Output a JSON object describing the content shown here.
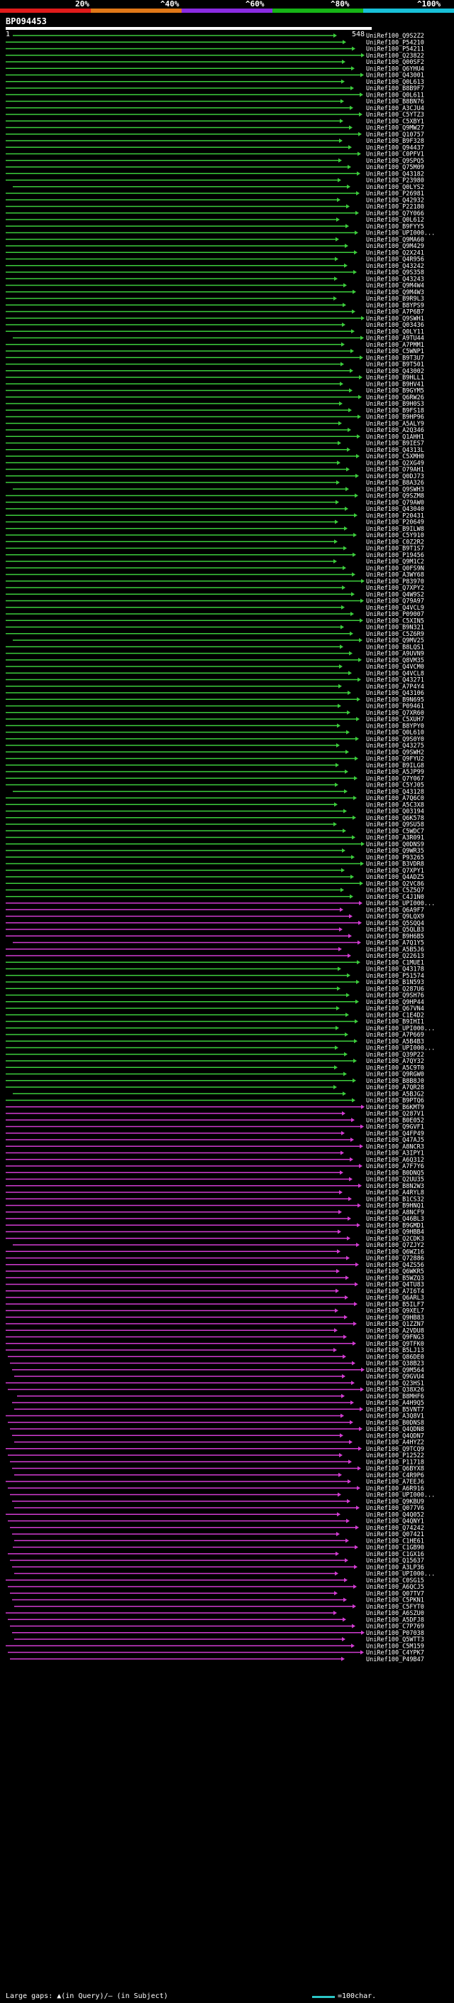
{
  "header": {
    "percent_labels": [
      "20%",
      "^40%",
      "^60%",
      "^80%",
      "^100%"
    ],
    "colors": [
      "#e01b1b",
      "#e07818",
      "#8a2be2",
      "#16b416",
      "#18c0d8"
    ],
    "query_id": "BP094453",
    "query_start": "1",
    "query_end": "548"
  },
  "footer": {
    "large_gaps": "Large gaps: ▲(in Query)/— (in Subject)",
    "scale_label": "=100char."
  },
  "rows": [
    {
      "id": "UniRef100_Q9S2Z2"
    },
    {
      "id": "UniRef100_P54210"
    },
    {
      "id": "UniRef100_P54211"
    },
    {
      "id": "UniRef100_Q23822"
    },
    {
      "id": "UniRef100_Q00SF2"
    },
    {
      "id": "UniRef100_Q6YHU4"
    },
    {
      "id": "UniRef100_Q43001"
    },
    {
      "id": "UniRef100_Q0L613"
    },
    {
      "id": "UniRef100_B8B9F7"
    },
    {
      "id": "UniRef100_Q0L611"
    },
    {
      "id": "UniRef100_B8BN76"
    },
    {
      "id": "UniRef100_A3CJU4"
    },
    {
      "id": "UniRef100_C5YTZ3"
    },
    {
      "id": "UniRef100_C5XBY1"
    },
    {
      "id": "UniRef100_Q9MW27"
    },
    {
      "id": "UniRef100_Q10757"
    },
    {
      "id": "UniRef100_B9F328"
    },
    {
      "id": "UniRef100_Q94437"
    },
    {
      "id": "UniRef100_C0PFV1"
    },
    {
      "id": "UniRef100_Q9SPQ5"
    },
    {
      "id": "UniRef100_Q75M09"
    },
    {
      "id": "UniRef100_Q43182"
    },
    {
      "id": "UniRef100_P23980"
    },
    {
      "id": "UniRef100_Q0LYS2"
    },
    {
      "id": "UniRef100_P26981"
    },
    {
      "id": "UniRef100_Q42932"
    },
    {
      "id": "UniRef100_P22180"
    },
    {
      "id": "UniRef100_Q7Y066"
    },
    {
      "id": "UniRef100_Q0L612"
    },
    {
      "id": "UniRef100_B9FYY5"
    },
    {
      "id": "UniRef100_UPI000..."
    },
    {
      "id": "UniRef100_Q9MA60"
    },
    {
      "id": "UniRef100_Q9M429"
    },
    {
      "id": "UniRef100_Q2X241"
    },
    {
      "id": "UniRef100_Q4R956"
    },
    {
      "id": "UniRef100_Q43242"
    },
    {
      "id": "UniRef100_Q9S358"
    },
    {
      "id": "UniRef100_Q43243"
    },
    {
      "id": "UniRef100_Q9M4W4"
    },
    {
      "id": "UniRef100_Q9M4W3"
    },
    {
      "id": "UniRef100_B9R9L3"
    },
    {
      "id": "UniRef100_B8YPS9"
    },
    {
      "id": "UniRef100_A7P6B7"
    },
    {
      "id": "UniRef100_Q9SWH1"
    },
    {
      "id": "UniRef100_Q03436"
    },
    {
      "id": "UniRef100_Q0LY11"
    },
    {
      "id": "UniRef100_A9TU44"
    },
    {
      "id": "UniRef100_A7PMM1"
    },
    {
      "id": "UniRef100_C5WNP1"
    },
    {
      "id": "UniRef100_B9T3U7"
    },
    {
      "id": "UniRef100_B9T501"
    },
    {
      "id": "UniRef100_Q43002"
    },
    {
      "id": "UniRef100_B9HLL1"
    },
    {
      "id": "UniRef100_B9HV41"
    },
    {
      "id": "UniRef100_B9GYM5"
    },
    {
      "id": "UniRef100_Q6RW26"
    },
    {
      "id": "UniRef100_B9H0S3"
    },
    {
      "id": "UniRef100_B9FS18"
    },
    {
      "id": "UniRef100_B9HP96"
    },
    {
      "id": "UniRef100_A5ALY9"
    },
    {
      "id": "UniRef100_A2Q346"
    },
    {
      "id": "UniRef100_Q1AHH1"
    },
    {
      "id": "UniRef100_B9IES7"
    },
    {
      "id": "UniRef100_Q4313L"
    },
    {
      "id": "UniRef100_C5XMH0"
    },
    {
      "id": "UniRef100_Q2XG49"
    },
    {
      "id": "UniRef100_O79AH1"
    },
    {
      "id": "UniRef100_Q0DJ73"
    },
    {
      "id": "UniRef100_B8A326"
    },
    {
      "id": "UniRef100_Q9SWH3"
    },
    {
      "id": "UniRef100_Q9SZM8"
    },
    {
      "id": "UniRef100_Q79AW0"
    },
    {
      "id": "UniRef100_Q43040"
    },
    {
      "id": "UniRef100_P20431"
    },
    {
      "id": "UniRef100_P20649"
    },
    {
      "id": "UniRef100_B9ILW8"
    },
    {
      "id": "UniRef100_C5Y910"
    },
    {
      "id": "UniRef100_C0Z2R2"
    },
    {
      "id": "UniRef100_B9T1S7"
    },
    {
      "id": "UniRef100_P19456"
    },
    {
      "id": "UniRef100_Q9M1C2"
    },
    {
      "id": "UniRef100_Q0FS9N"
    },
    {
      "id": "UniRef100_A3WY68"
    },
    {
      "id": "UniRef100_P83970"
    },
    {
      "id": "UniRef100_Q7XPY2"
    },
    {
      "id": "UniRef100_Q4W9S2"
    },
    {
      "id": "UniRef100_Q79A97"
    },
    {
      "id": "UniRef100_Q4VCL9"
    },
    {
      "id": "UniRef100_P09007"
    },
    {
      "id": "UniRef100_C5XIN5"
    },
    {
      "id": "UniRef100_B9N321"
    },
    {
      "id": "UniRef100_C5Z6R9"
    },
    {
      "id": "UniRef100_Q9MV25"
    },
    {
      "id": "UniRef100_B8LQS1"
    },
    {
      "id": "UniRef100_A9UVN9"
    },
    {
      "id": "UniRef100_Q8VM35"
    },
    {
      "id": "UniRef100_Q4VCM0"
    },
    {
      "id": "UniRef100_Q4VCL8"
    },
    {
      "id": "UniRef100_Q43271"
    },
    {
      "id": "UniRef100_A7P4Y4"
    },
    {
      "id": "UniRef100_Q43106"
    },
    {
      "id": "UniRef100_B9N695"
    },
    {
      "id": "UniRef100_P09461"
    },
    {
      "id": "UniRef100_Q7XR60"
    },
    {
      "id": "UniRef100_C5XUH7"
    },
    {
      "id": "UniRef100_B8YPY0"
    },
    {
      "id": "UniRef100_Q0L610"
    },
    {
      "id": "UniRef100_Q9S0Y0"
    },
    {
      "id": "UniRef100_Q43275"
    },
    {
      "id": "UniRef100_Q9SWH2"
    },
    {
      "id": "UniRef100_Q9FYU2"
    },
    {
      "id": "UniRef100_B9ILG8"
    },
    {
      "id": "UniRef100_A5JP99"
    },
    {
      "id": "UniRef100_Q7Y067"
    },
    {
      "id": "UniRef100_C5YJ05"
    },
    {
      "id": "UniRef100_Q43128"
    },
    {
      "id": "UniRef100_A7Q6C0"
    },
    {
      "id": "UniRef100_A5C3X8"
    },
    {
      "id": "UniRef100_Q03194"
    },
    {
      "id": "UniRef100_Q6K578"
    },
    {
      "id": "UniRef100_Q9SU58"
    },
    {
      "id": "UniRef100_C5WDC7"
    },
    {
      "id": "UniRef100_A3R091"
    },
    {
      "id": "UniRef100_Q0DNS9"
    },
    {
      "id": "UniRef100_Q9WR35"
    },
    {
      "id": "UniRef100_P93265"
    },
    {
      "id": "UniRef100_B3VDR8"
    },
    {
      "id": "UniRef100_Q7XPY1"
    },
    {
      "id": "UniRef100_Q4ADZ5"
    },
    {
      "id": "UniRef100_Q2VC86"
    },
    {
      "id": "UniRef100_C5Z5Q7"
    },
    {
      "id": "UniRef100_C4J1N0"
    },
    {
      "id": "UniRef100_UPI000..."
    },
    {
      "id": "UniRef100_Q6A9F7"
    },
    {
      "id": "UniRef100_Q9LQX9"
    },
    {
      "id": "UniRef100_Q5SQQ4"
    },
    {
      "id": "UniRef100_Q5QLB3"
    },
    {
      "id": "UniRef100_B9H6B5"
    },
    {
      "id": "UniRef100_A7Q1Y5"
    },
    {
      "id": "UniRef100_A5B5J6"
    },
    {
      "id": "UniRef100_Q22613"
    },
    {
      "id": "UniRef100_C1MUE1"
    },
    {
      "id": "UniRef100_Q43178"
    },
    {
      "id": "UniRef100_P51574"
    },
    {
      "id": "UniRef100_B1N593"
    },
    {
      "id": "UniRef100_Q287U6"
    },
    {
      "id": "UniRef100_Q9SH76"
    },
    {
      "id": "UniRef100_Q9HP44"
    },
    {
      "id": "UniRef100_Q67VN4"
    },
    {
      "id": "UniRef100_C1E4D2"
    },
    {
      "id": "UniRef100_B9IHI1"
    },
    {
      "id": "UniRef100_UPI000..."
    },
    {
      "id": "UniRef100_A7P669"
    },
    {
      "id": "UniRef100_A5B4B3"
    },
    {
      "id": "UniRef100_UPI000..."
    },
    {
      "id": "UniRef100_Q39P22"
    },
    {
      "id": "UniRef100_A7QY32"
    },
    {
      "id": "UniRef100_A5C9T0"
    },
    {
      "id": "UniRef100_Q9RGW0"
    },
    {
      "id": "UniRef100_B8B8J0"
    },
    {
      "id": "UniRef100_A7QR28"
    },
    {
      "id": "UniRef100_A5BJG2"
    },
    {
      "id": "UniRef100_B9PTQ6"
    },
    {
      "id": "UniRef100_B6KMT9"
    },
    {
      "id": "UniRef100_Q287V1"
    },
    {
      "id": "UniRef100_B0E052"
    },
    {
      "id": "UniRef100_Q9GVF1"
    },
    {
      "id": "UniRef100_Q4FP49"
    },
    {
      "id": "UniRef100_Q47AJ5"
    },
    {
      "id": "UniRef100_A8NCR3"
    },
    {
      "id": "UniRef100_A3IPY1"
    },
    {
      "id": "UniRef100_A6Q312"
    },
    {
      "id": "UniRef100_A7F7Y6"
    },
    {
      "id": "UniRef100_B0DNQ5"
    },
    {
      "id": "UniRef100_Q2UU35"
    },
    {
      "id": "UniRef100_B8N2W3"
    },
    {
      "id": "UniRef100_A4RYL8"
    },
    {
      "id": "UniRef100_B1CS32"
    },
    {
      "id": "UniRef100_B9HNQ1"
    },
    {
      "id": "UniRef100_A8NCF9"
    },
    {
      "id": "UniRef100_Q46BL3"
    },
    {
      "id": "UniRef100_B9GMD1"
    },
    {
      "id": "UniRef100_Q9HBB4"
    },
    {
      "id": "UniRef100_Q2CDK3"
    },
    {
      "id": "UniRef100_Q7ZJY2"
    },
    {
      "id": "UniRef100_Q6WZ16"
    },
    {
      "id": "UniRef100_Q72886"
    },
    {
      "id": "UniRef100_Q4ZS56"
    },
    {
      "id": "UniRef100_Q6WKR5"
    },
    {
      "id": "UniRef100_B5WZQ3"
    },
    {
      "id": "UniRef100_Q4TU83"
    },
    {
      "id": "UniRef100_A7I6T4"
    },
    {
      "id": "UniRef100_Q6ARL3"
    },
    {
      "id": "UniRef100_B5ILF7"
    },
    {
      "id": "UniRef100_Q9XEL7"
    },
    {
      "id": "UniRef100_Q9HB83"
    },
    {
      "id": "UniRef100_Q1ZZN7"
    },
    {
      "id": "UniRef100_A2VDU8"
    },
    {
      "id": "UniRef100_Q9FNG3"
    },
    {
      "id": "UniRef100_Q9TFK0"
    },
    {
      "id": "UniRef100_B5LJ13"
    },
    {
      "id": "UniRef100_Q86DE0"
    },
    {
      "id": "UniRef100_Q38B23"
    },
    {
      "id": "UniRef100_Q9M564"
    },
    {
      "id": "UniRef100_Q9GVU4"
    },
    {
      "id": "UniRef100_Q23HS1"
    },
    {
      "id": "UniRef100_Q38X26"
    },
    {
      "id": "UniRef100_B8MHF6"
    },
    {
      "id": "UniRef100_A4H9Q5"
    },
    {
      "id": "UniRef100_B5VNT7"
    },
    {
      "id": "UniRef100_A3Q8V1"
    },
    {
      "id": "UniRef100_B0DNS8"
    },
    {
      "id": "UniRef100_Q4QDN8"
    },
    {
      "id": "UniRef100_Q4QDN7"
    },
    {
      "id": "UniRef100_A4HYZ2"
    },
    {
      "id": "UniRef100_Q9TCQ9"
    },
    {
      "id": "UniRef100_P12522"
    },
    {
      "id": "UniRef100_P11718"
    },
    {
      "id": "UniRef100_Q6BYX8"
    },
    {
      "id": "UniRef100_C4R9P6"
    },
    {
      "id": "UniRef100_A7EEJ6"
    },
    {
      "id": "UniRef100_A6R916"
    },
    {
      "id": "UniRef100_UPI000..."
    },
    {
      "id": "UniRef100_Q9KBU9"
    },
    {
      "id": "UniRef100_Q077V6"
    },
    {
      "id": "UniRef100_Q4Q052"
    },
    {
      "id": "UniRef100_Q4QNY1"
    },
    {
      "id": "UniRef100_Q74242"
    },
    {
      "id": "UniRef100_Q07421"
    },
    {
      "id": "UniRef100_C1HE61"
    },
    {
      "id": "UniRef100_C1GB90"
    },
    {
      "id": "UniRef100_C1GX16"
    },
    {
      "id": "UniRef100_Q15637"
    },
    {
      "id": "UniRef100_A3LP36"
    },
    {
      "id": "UniRef100_UPI000..."
    },
    {
      "id": "UniRef100_C0SG15"
    },
    {
      "id": "UniRef100_A6QCJ5"
    },
    {
      "id": "UniRef100_Q07TV7"
    },
    {
      "id": "UniRef100_C5PKN1"
    },
    {
      "id": "UniRef100_C5FYT0"
    },
    {
      "id": "UniRef100_A6SZU0"
    },
    {
      "id": "UniRef100_A5DFJ8"
    },
    {
      "id": "UniRef100_C7P769"
    },
    {
      "id": "UniRef100_P07038"
    },
    {
      "id": "UniRef100_Q5WTT3"
    },
    {
      "id": "UniRef100_C5M159"
    },
    {
      "id": "UniRef100_C4YPK7"
    },
    {
      "id": "UniRef100_P49B47"
    }
  ]
}
